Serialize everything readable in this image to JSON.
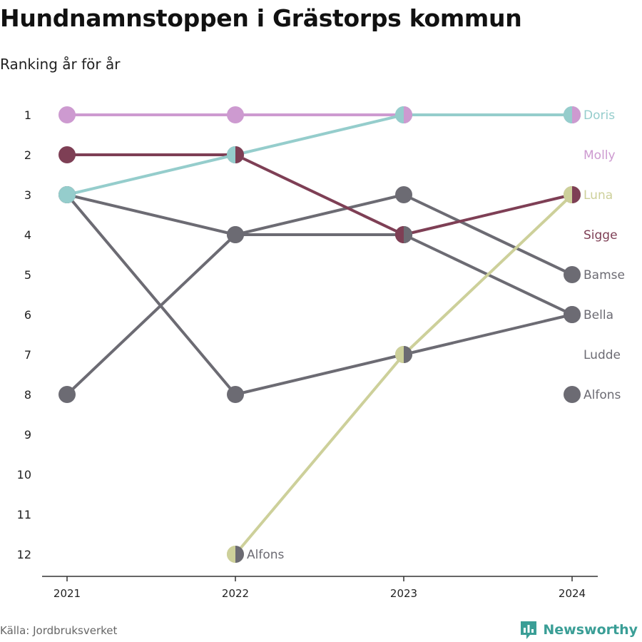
{
  "colors": {
    "Doris": "#95cdcc",
    "Molly": "#cd9ad0",
    "Luna": "#cdd09a",
    "Sigge": "#7e3f55",
    "grey": "#6c6b73"
  },
  "chart_data": {
    "type": "line",
    "title": "Hundnamnstoppen i Grästorps kommun",
    "subtitle": "Ranking år för år",
    "x": [
      "2021",
      "2022",
      "2023",
      "2024"
    ],
    "y_ticks": [
      "1",
      "2",
      "3",
      "4",
      "5",
      "6",
      "7",
      "8",
      "9",
      "10",
      "11",
      "12"
    ],
    "ylim": [
      1,
      12
    ],
    "y_reversed": true,
    "grid": false,
    "series": [
      {
        "name": "Bamse",
        "color_key": "grey",
        "ranks": [
          3,
          4,
          3,
          5
        ]
      },
      {
        "name": "Bella",
        "color_key": "grey",
        "ranks": [
          8,
          4,
          4,
          6
        ]
      },
      {
        "name": "Ludde",
        "color_key": "grey",
        "ranks": [
          3,
          8,
          7,
          6
        ]
      },
      {
        "name": "Alfons",
        "color_key": "grey",
        "ranks": [
          null,
          null,
          null,
          8
        ]
      },
      {
        "name": "Molly",
        "color_key": "Molly",
        "ranks": [
          1,
          1,
          1,
          1
        ]
      },
      {
        "name": "Sigge",
        "color_key": "Sigge",
        "ranks": [
          2,
          2,
          4,
          3
        ]
      },
      {
        "name": "Luna",
        "color_key": "Luna",
        "ranks": [
          null,
          12,
          7,
          3
        ]
      },
      {
        "name": "Doris",
        "color_key": "Doris",
        "ranks": [
          3,
          2,
          1,
          1
        ]
      }
    ],
    "end_labels": [
      {
        "text": "Doris",
        "rank": 1,
        "color_key": "Doris"
      },
      {
        "text": "Molly",
        "rank": 2,
        "color_key": "Molly"
      },
      {
        "text": "Luna",
        "rank": 3,
        "color_key": "Luna"
      },
      {
        "text": "Sigge",
        "rank": 4,
        "color_key": "Sigge"
      },
      {
        "text": "Bamse",
        "rank": 5,
        "color_key": "grey"
      },
      {
        "text": "Bella",
        "rank": 6,
        "color_key": "grey"
      },
      {
        "text": "Ludde",
        "rank": 7,
        "color_key": "grey"
      },
      {
        "text": "Alfons",
        "rank": 8,
        "color_key": "grey"
      }
    ],
    "annotations": [
      {
        "text": "Alfons",
        "x": "2022",
        "rank": 12
      }
    ],
    "split_markers": [
      {
        "x": "2022",
        "rank": 2,
        "left": "Doris",
        "right": "Sigge"
      },
      {
        "x": "2022",
        "rank": 12,
        "left": "Luna",
        "right": "grey"
      },
      {
        "x": "2023",
        "rank": 1,
        "left": "Doris",
        "right": "Molly"
      },
      {
        "x": "2023",
        "rank": 4,
        "left": "Sigge",
        "right": "grey"
      },
      {
        "x": "2023",
        "rank": 7,
        "left": "Luna",
        "right": "grey"
      },
      {
        "x": "2024",
        "rank": 1,
        "left": "Doris",
        "right": "Molly"
      },
      {
        "x": "2024",
        "rank": 3,
        "left": "Luna",
        "right": "Sigge"
      }
    ]
  },
  "source": "Källa: Jordbruksverket",
  "brand": {
    "name": "Newsworthy",
    "logo_icon": "newsworthy-logo-icon"
  }
}
